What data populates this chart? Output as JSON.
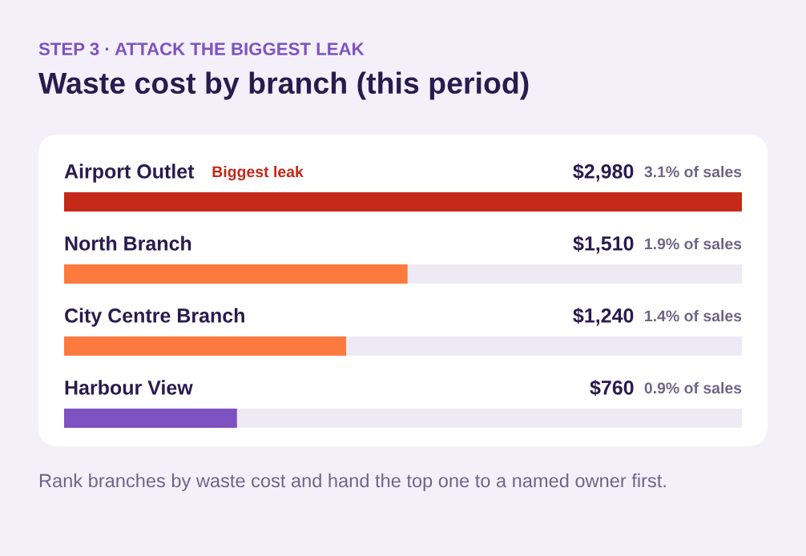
{
  "chart_data": {
    "type": "bar",
    "orientation": "horizontal",
    "subtitle": "STEP 3 · ATTACK THE BIGGEST LEAK",
    "title": "Waste cost by branch (this period)",
    "categories": [
      "Airport Outlet",
      "North Branch",
      "City Centre Branch",
      "Harbour View"
    ],
    "values": [
      2980,
      1510,
      1240,
      760
    ],
    "colors": [
      "#c4291a",
      "#fd7a3f",
      "#fd7a3f",
      "#7e52c1"
    ],
    "value_labels": [
      "$2,980",
      "$1,510",
      "$1,240",
      "$760"
    ],
    "xlim": [
      0,
      2980
    ],
    "tick_labels": false,
    "annotations": [
      "Biggest leak",
      "3.1% of sales",
      "1.9% of sales",
      "1.4% of sales",
      "0.9% of sales",
      "Rank branches by waste cost and hand the top one to a named owner first."
    ]
  }
}
